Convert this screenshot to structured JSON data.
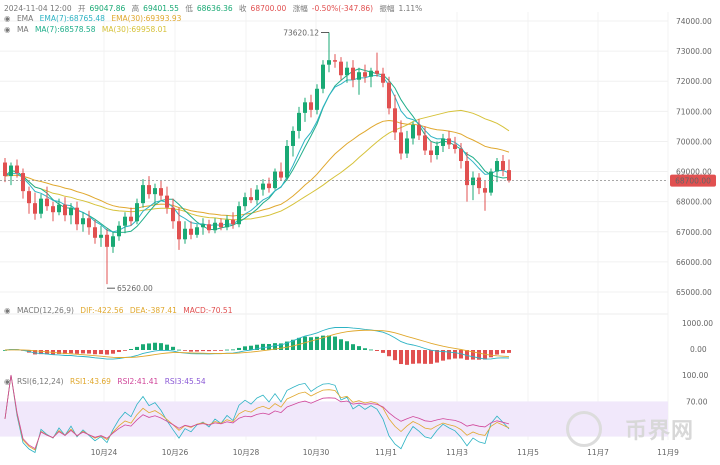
{
  "header": {
    "date": "2024-11-04 12:00",
    "open_label": "开",
    "open": "69047.86",
    "high_label": "高",
    "high": "69401.55",
    "low_label": "低",
    "low": "68636.36",
    "close_label": "收",
    "close": "68700.00",
    "change_label": "涨幅",
    "change": "-0.50%(-347.86)",
    "amp_label": "振幅",
    "amp": "1.11%"
  },
  "ema_line": {
    "name": "EMA",
    "a": "EMA(7):68765.48",
    "b": "EMA(30):69393.93"
  },
  "ma_line": {
    "name": "MA",
    "a": "MA(7):68578.58",
    "b": "MA(30):69958.01"
  },
  "macd_line": {
    "name": "MACD(12,26,9)",
    "dif": "DIF:-422.56",
    "dea": "DEA:-387.41",
    "macd": "MACD:-70.51"
  },
  "rsi_line": {
    "name": "RSI(6,12,24)",
    "r1": "RSI1:43.69",
    "r2": "RSI2:41.41",
    "r3": "RSI3:45.54"
  },
  "price_axis": [
    "74000.00",
    "73000.00",
    "72000.00",
    "71000.00",
    "70000.00",
    "69000.00",
    "68000.00",
    "67000.00",
    "66000.00",
    "65000.00"
  ],
  "current_price": "68700.00",
  "macd_axis": [
    "1000.00",
    "0.00"
  ],
  "rsi_axis": [
    "100.00",
    "70.00"
  ],
  "x_axis": [
    "10月24",
    "10月26",
    "10月28",
    "10月30",
    "11月1",
    "11月3",
    "11月5",
    "11月7",
    "11月9"
  ],
  "max_label": "73620.12",
  "min_label": "65260.00",
  "watermark": "币界网",
  "colors": {
    "up": "#19a974",
    "down": "#e15050",
    "ema7": "#2db3c4",
    "ema30": "#e0a82e",
    "ma7": "#1fae8a",
    "ma30": "#d6c23a"
  },
  "chart_data": {
    "type": "candlestick",
    "interval": "4h",
    "ylim": [
      64800,
      74300
    ],
    "candles": [
      [
        69300,
        69450,
        68650,
        68850
      ],
      [
        68850,
        69300,
        68550,
        69200
      ],
      [
        69200,
        69400,
        68800,
        68950
      ],
      [
        68950,
        69100,
        68100,
        68350
      ],
      [
        68350,
        68500,
        67600,
        67950
      ],
      [
        67950,
        68300,
        67400,
        67600
      ],
      [
        67600,
        68250,
        67450,
        68100
      ],
      [
        68100,
        68500,
        67700,
        67850
      ],
      [
        67850,
        68000,
        67350,
        67650
      ],
      [
        67650,
        68100,
        67550,
        67900
      ],
      [
        67900,
        68150,
        67350,
        67550
      ],
      [
        67550,
        67950,
        67250,
        67800
      ],
      [
        67800,
        68000,
        67050,
        67250
      ],
      [
        67250,
        67650,
        67000,
        67450
      ],
      [
        67450,
        67700,
        66900,
        67150
      ],
      [
        67150,
        67400,
        66600,
        66800
      ],
      [
        66800,
        67200,
        66500,
        66900
      ],
      [
        66900,
        67100,
        65260,
        66500
      ],
      [
        66500,
        67000,
        66300,
        66850
      ],
      [
        66850,
        67350,
        66700,
        67200
      ],
      [
        67200,
        67650,
        66950,
        67500
      ],
      [
        67500,
        67800,
        67200,
        67350
      ],
      [
        67350,
        68100,
        67250,
        67950
      ],
      [
        67950,
        68750,
        67800,
        68550
      ],
      [
        68550,
        68850,
        68100,
        68250
      ],
      [
        68250,
        68600,
        67900,
        68450
      ],
      [
        68450,
        68700,
        68050,
        68200
      ],
      [
        68200,
        68500,
        67600,
        67800
      ],
      [
        67800,
        68100,
        67100,
        67350
      ],
      [
        67350,
        67800,
        66400,
        66750
      ],
      [
        66750,
        67350,
        66600,
        67100
      ],
      [
        67100,
        67350,
        66750,
        66900
      ],
      [
        66900,
        67250,
        66800,
        67150
      ],
      [
        67150,
        67450,
        66900,
        67250
      ],
      [
        67250,
        67400,
        66950,
        67050
      ],
      [
        67050,
        67450,
        66950,
        67300
      ],
      [
        67300,
        67450,
        67050,
        67150
      ],
      [
        67150,
        67550,
        67050,
        67400
      ],
      [
        67400,
        67650,
        67100,
        67250
      ],
      [
        67250,
        68000,
        67150,
        67850
      ],
      [
        67850,
        68300,
        67700,
        68150
      ],
      [
        68150,
        68450,
        67950,
        68050
      ],
      [
        68050,
        68550,
        67900,
        68400
      ],
      [
        68400,
        68750,
        68200,
        68600
      ],
      [
        68600,
        68800,
        68300,
        68450
      ],
      [
        68450,
        69100,
        68400,
        69000
      ],
      [
        69000,
        69300,
        68700,
        68800
      ],
      [
        68800,
        70050,
        68700,
        69850
      ],
      [
        69850,
        70500,
        69500,
        70350
      ],
      [
        70350,
        71150,
        70100,
        70950
      ],
      [
        70950,
        71450,
        70650,
        71300
      ],
      [
        71300,
        71550,
        70800,
        71050
      ],
      [
        71050,
        71900,
        70900,
        71750
      ],
      [
        71750,
        72700,
        71600,
        72550
      ],
      [
        72550,
        73620.12,
        72300,
        72700
      ],
      [
        72700,
        72900,
        72450,
        72650
      ],
      [
        72650,
        72800,
        72050,
        72200
      ],
      [
        72200,
        72650,
        71950,
        72450
      ],
      [
        72450,
        72700,
        71800,
        72050
      ],
      [
        72050,
        72450,
        71550,
        72300
      ],
      [
        72300,
        72550,
        71950,
        72150
      ],
      [
        72150,
        72450,
        71800,
        72350
      ],
      [
        72350,
        72950,
        72150,
        72250
      ],
      [
        72250,
        72450,
        71800,
        71950
      ],
      [
        71950,
        72150,
        70900,
        71100
      ],
      [
        71100,
        71550,
        70050,
        70300
      ],
      [
        70300,
        70700,
        69400,
        69600
      ],
      [
        69600,
        70350,
        69450,
        70100
      ],
      [
        70100,
        70650,
        69900,
        70550
      ],
      [
        70550,
        70750,
        70050,
        70200
      ],
      [
        70200,
        70500,
        69550,
        69700
      ],
      [
        69700,
        70000,
        69300,
        69550
      ],
      [
        69550,
        70000,
        69400,
        69850
      ],
      [
        69850,
        70250,
        69650,
        70100
      ],
      [
        70100,
        70350,
        69750,
        69900
      ],
      [
        69900,
        70150,
        69600,
        69750
      ],
      [
        69750,
        69950,
        69100,
        69350
      ],
      [
        69350,
        69650,
        68000,
        68550
      ],
      [
        68550,
        69000,
        68050,
        68800
      ],
      [
        68800,
        68950,
        68250,
        68450
      ],
      [
        68450,
        68700,
        67700,
        68300
      ],
      [
        68300,
        69100,
        68200,
        69000
      ],
      [
        69000,
        69450,
        68650,
        69350
      ],
      [
        69350,
        69550,
        68850,
        69047.86
      ],
      [
        69047.86,
        69401.55,
        68636.36,
        68700
      ]
    ]
  }
}
